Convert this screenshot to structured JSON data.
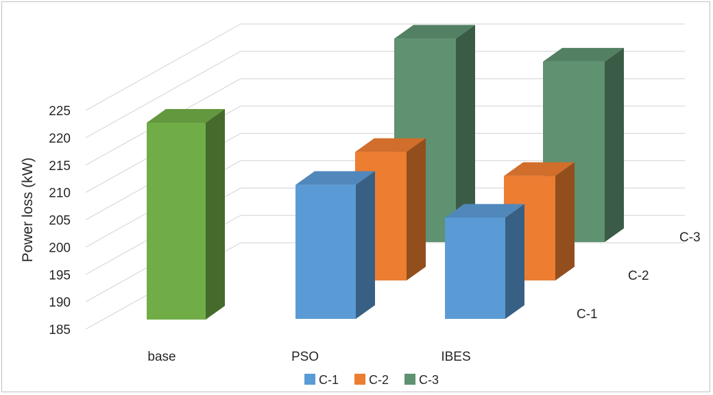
{
  "chart_data": {
    "type": "bar",
    "subtype": "3d-column",
    "title": "",
    "xlabel": "",
    "ylabel": "Power loss (kW)",
    "ylim": [
      185,
      225
    ],
    "yticks": [
      185,
      190,
      195,
      200,
      205,
      210,
      215,
      220,
      225
    ],
    "grid": true,
    "categories": [
      "base",
      "PSO",
      "IBES"
    ],
    "depth_labels": [
      "C-1",
      "C-2",
      "C-3"
    ],
    "series": [
      {
        "name": "C-1",
        "color": "#5b9bd5",
        "values": [
          null,
          209.5,
          203.5
        ]
      },
      {
        "name": "C-2",
        "color": "#ed7d31",
        "values": [
          null,
          208.5,
          204.1
        ]
      },
      {
        "name": "C-3",
        "color": "#5e9270",
        "values": [
          null,
          222.2,
          218.0
        ]
      }
    ],
    "base_value": 223.0,
    "base_color": "#70ad47",
    "legend": {
      "position": "bottom",
      "entries": [
        "C-1",
        "C-2",
        "C-3"
      ]
    }
  }
}
